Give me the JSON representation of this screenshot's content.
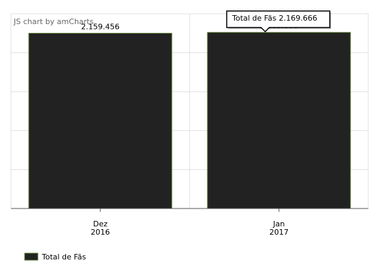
{
  "credit": "JS chart by amCharts",
  "colors": {
    "bar_fill": "#222222",
    "bar_stroke": "#4a6b1f",
    "grid": "#e0e0e0",
    "axis": "#555555",
    "tooltip_border": "#000000",
    "tooltip_bg": "#ffffff"
  },
  "tooltip": {
    "text": "Total de Fãs 2.169.666",
    "category_index": 1
  },
  "chart_data": {
    "type": "bar",
    "categories": [
      "Dez 2016",
      "Jan 2017"
    ],
    "category_lines": [
      [
        "Dez",
        "2016"
      ],
      [
        "Jan",
        "2017"
      ]
    ],
    "series": [
      {
        "name": "Total de Fãs",
        "values": [
          2159456,
          2169666
        ],
        "data_labels": [
          "2.159.456",
          "2.169.666"
        ]
      }
    ],
    "ylim": [
      0,
      2400000
    ],
    "grid": true,
    "legend_placement": "bottom-left",
    "title": "",
    "xlabel": "",
    "ylabel": ""
  }
}
